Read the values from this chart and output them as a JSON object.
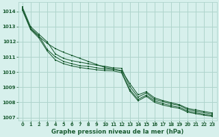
{
  "title": "Graphe pression niveau de la mer (hPa)",
  "bg_color": "#d7f0ec",
  "grid_color": "#aed4cc",
  "line_color": "#1a5c32",
  "xlim": [
    -0.5,
    23.5
  ],
  "ylim": [
    1006.8,
    1014.6
  ],
  "yticks": [
    1007,
    1008,
    1009,
    1010,
    1011,
    1012,
    1013,
    1014
  ],
  "xticks": [
    0,
    1,
    2,
    3,
    4,
    5,
    6,
    7,
    8,
    9,
    10,
    11,
    12,
    13,
    14,
    15,
    16,
    17,
    18,
    19,
    20,
    21,
    22,
    23
  ],
  "series": [
    [
      1014.3,
      1013.0,
      1012.5,
      1012.0,
      1011.2,
      1010.9,
      1010.75,
      1010.65,
      1010.55,
      1010.45,
      1010.38,
      1010.28,
      1010.25,
      1009.05,
      1008.35,
      1008.62,
      1008.2,
      1008.05,
      1007.9,
      1007.8,
      1007.52,
      1007.42,
      1007.32,
      1007.22
    ],
    [
      1014.2,
      1012.9,
      1012.4,
      1011.5,
      1011.0,
      1010.7,
      1010.55,
      1010.42,
      1010.38,
      1010.28,
      1010.2,
      1010.18,
      1010.05,
      1008.85,
      1008.2,
      1008.48,
      1008.1,
      1007.92,
      1007.78,
      1007.68,
      1007.42,
      1007.32,
      1007.22,
      1007.12
    ],
    [
      1014.15,
      1012.85,
      1012.35,
      1011.9,
      1011.55,
      1011.3,
      1011.1,
      1010.9,
      1010.7,
      1010.5,
      1010.3,
      1010.2,
      1010.1,
      1009.25,
      1008.5,
      1008.7,
      1008.3,
      1008.12,
      1007.98,
      1007.85,
      1007.6,
      1007.5,
      1007.4,
      1007.3
    ],
    [
      1014.1,
      1012.8,
      1012.25,
      1011.4,
      1010.8,
      1010.55,
      1010.4,
      1010.3,
      1010.22,
      1010.15,
      1010.1,
      1010.08,
      1009.95,
      1008.75,
      1008.1,
      1008.4,
      1008.0,
      1007.82,
      1007.7,
      1007.6,
      1007.35,
      1007.25,
      1007.15,
      1007.08
    ]
  ]
}
